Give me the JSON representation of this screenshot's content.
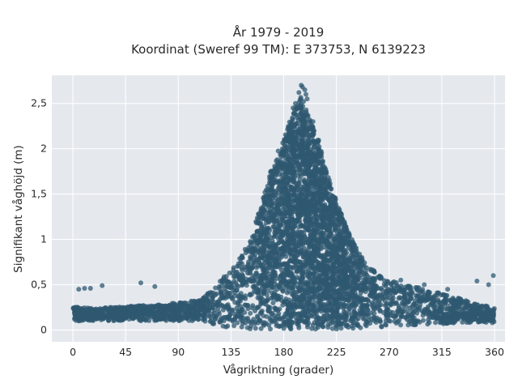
{
  "chart_data": {
    "type": "scatter",
    "title_line1": "År 1979 - 2019",
    "title_line2": "Koordinat (Sweref 99 TM): E 373753, N 6139223",
    "xlabel": "Vågriktning (grader)",
    "ylabel": "Signifikant våghöjd (m)",
    "xlim": [
      -18,
      369
    ],
    "ylim": [
      -0.13,
      2.81
    ],
    "x_ticks": [
      0,
      45,
      90,
      135,
      180,
      225,
      270,
      315,
      360
    ],
    "x_tick_labels": [
      "0",
      "45",
      "90",
      "135",
      "180",
      "225",
      "270",
      "315",
      "360"
    ],
    "y_ticks": [
      0,
      0.5,
      1,
      1.5,
      2,
      2.5
    ],
    "y_tick_labels": [
      "0",
      "0,5",
      "1",
      "1,5",
      "2",
      "2,5"
    ],
    "grid": true,
    "marker_color": "#2f5870",
    "plot_background": "#e5e9ee",
    "envelope": {
      "x": [
        0,
        20,
        45,
        90,
        110,
        130,
        140,
        150,
        160,
        170,
        180,
        190,
        195,
        200,
        210,
        220,
        230,
        240,
        250,
        260,
        270,
        300,
        330,
        360
      ],
      "y_max": [
        0.26,
        0.24,
        0.26,
        0.3,
        0.34,
        0.6,
        0.75,
        0.95,
        1.35,
        1.8,
        2.15,
        2.45,
        2.6,
        2.4,
        2.1,
        1.6,
        1.25,
        0.95,
        0.75,
        0.62,
        0.55,
        0.45,
        0.35,
        0.24
      ],
      "y_min": [
        0.1,
        0.1,
        0.1,
        0.1,
        0.1,
        0.03,
        0.02,
        0.01,
        0.01,
        0.01,
        0.01,
        0.01,
        0.01,
        0.01,
        0.01,
        0.01,
        0.01,
        0.01,
        0.02,
        0.03,
        0.04,
        0.06,
        0.07,
        0.08
      ]
    },
    "sample_points": {
      "x": [
        5,
        10,
        15,
        25,
        58,
        70,
        195,
        196,
        198,
        193,
        199,
        190,
        200,
        188,
        205,
        359,
        355,
        345,
        320,
        300,
        280,
        250,
        260
      ],
      "y": [
        0.45,
        0.46,
        0.46,
        0.49,
        0.52,
        0.48,
        2.7,
        2.68,
        2.65,
        2.62,
        2.6,
        2.5,
        2.55,
        2.45,
        2.3,
        0.6,
        0.5,
        0.54,
        0.45,
        0.5,
        0.55,
        0.65,
        0.58
      ]
    }
  }
}
